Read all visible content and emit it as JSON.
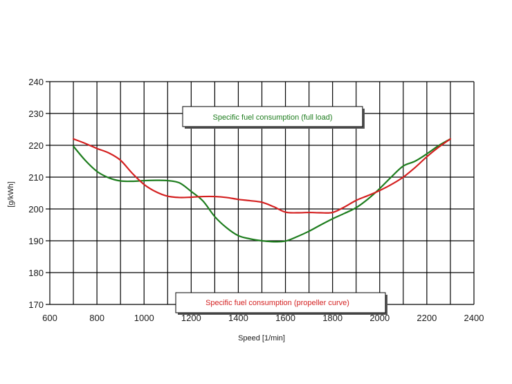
{
  "chart_data": {
    "type": "line",
    "xlabel": "Speed [1/min]",
    "ylabel": "[g/kWh]",
    "xlim": [
      600,
      2400
    ],
    "ylim": [
      170,
      240
    ],
    "x_ticks": [
      600,
      800,
      1000,
      1200,
      1400,
      1600,
      1800,
      2000,
      2200,
      2400
    ],
    "y_ticks": [
      170,
      180,
      190,
      200,
      210,
      220,
      230,
      240
    ],
    "grid": true,
    "series": [
      {
        "name": "Specific fuel consumption (full load)",
        "color": "#1e7d1e",
        "x": [
          700,
          750,
          800,
          850,
          900,
          950,
          1000,
          1050,
          1100,
          1150,
          1200,
          1250,
          1300,
          1350,
          1400,
          1450,
          1500,
          1550,
          1600,
          1650,
          1700,
          1750,
          1800,
          1850,
          1900,
          1950,
          2000,
          2050,
          2100,
          2150,
          2200,
          2250,
          2300
        ],
        "values": [
          219.7,
          215.3,
          211.8,
          209.8,
          208.8,
          208.7,
          208.9,
          209.0,
          208.9,
          208.2,
          205.5,
          202.5,
          197.6,
          194.1,
          191.6,
          190.6,
          190.0,
          189.7,
          189.9,
          191.3,
          193.0,
          195.0,
          196.9,
          198.6,
          200.4,
          203.1,
          206.4,
          210.1,
          213.5,
          215.0,
          217.3,
          219.9,
          222.0
        ]
      },
      {
        "name": "Specific fuel consumption (propeller curve)",
        "color": "#d42020",
        "x": [
          700,
          750,
          800,
          850,
          900,
          950,
          1000,
          1050,
          1100,
          1150,
          1200,
          1250,
          1300,
          1350,
          1400,
          1450,
          1500,
          1550,
          1600,
          1650,
          1700,
          1750,
          1800,
          1850,
          1900,
          1950,
          2000,
          2050,
          2100,
          2150,
          2200,
          2250,
          2300
        ],
        "values": [
          222.0,
          220.6,
          219.0,
          217.6,
          215.3,
          211.2,
          207.7,
          205.4,
          204.0,
          203.6,
          203.7,
          203.9,
          203.9,
          203.6,
          203.0,
          202.6,
          202.1,
          200.7,
          199.0,
          198.8,
          198.9,
          198.8,
          198.9,
          200.6,
          202.7,
          204.2,
          205.8,
          207.7,
          210.0,
          213.0,
          216.4,
          219.4,
          222.0
        ]
      }
    ]
  }
}
